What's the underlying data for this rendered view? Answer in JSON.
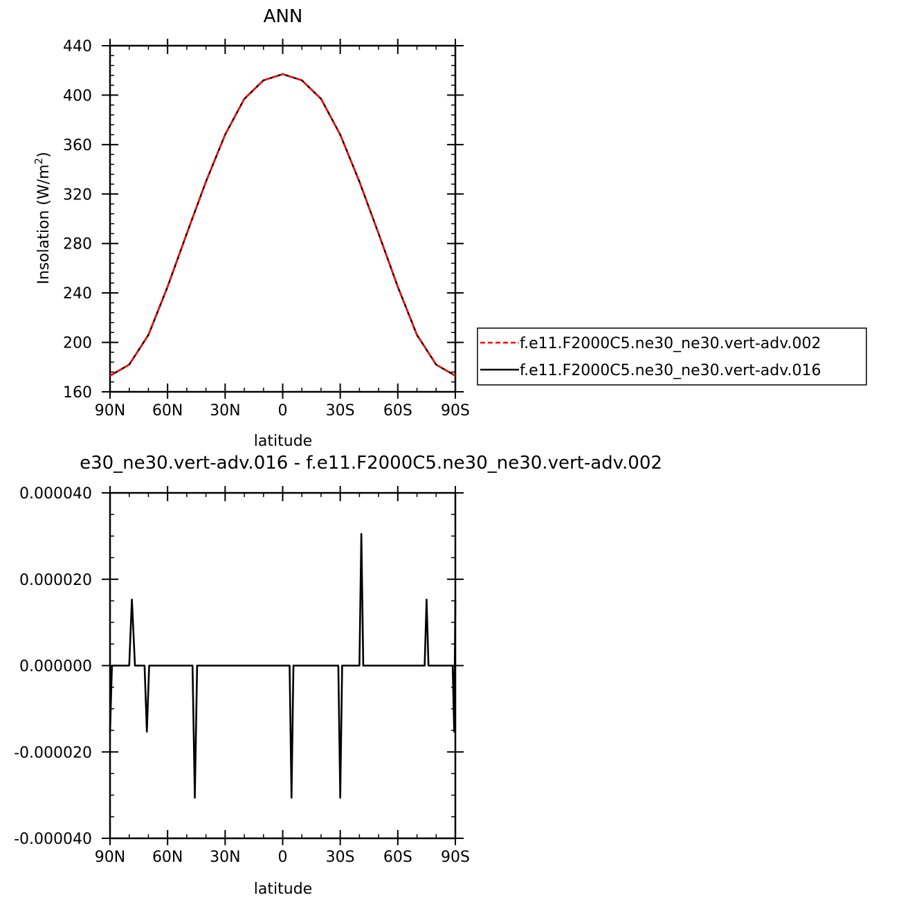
{
  "chart_data": [
    {
      "type": "line",
      "title": "ANN",
      "xlabel": "latitude",
      "ylabel": "Insolation (W/m",
      "ylabel_sup": "2",
      "ylabel_close": ")",
      "xlim": [
        -90,
        90
      ],
      "ylim": [
        160,
        440
      ],
      "x_ticks": [
        {
          "value": -90,
          "label": "90N"
        },
        {
          "value": -60,
          "label": "60N"
        },
        {
          "value": -30,
          "label": "30N"
        },
        {
          "value": 0,
          "label": "0"
        },
        {
          "value": 30,
          "label": "30S"
        },
        {
          "value": 60,
          "label": "60S"
        },
        {
          "value": 90,
          "label": "90S"
        }
      ],
      "y_ticks": [
        {
          "value": 160,
          "label": "160"
        },
        {
          "value": 200,
          "label": "200"
        },
        {
          "value": 240,
          "label": "240"
        },
        {
          "value": 280,
          "label": "280"
        },
        {
          "value": 320,
          "label": "320"
        },
        {
          "value": 360,
          "label": "360"
        },
        {
          "value": 400,
          "label": "400"
        },
        {
          "value": 440,
          "label": "440"
        }
      ],
      "legend_position": "right",
      "series": [
        {
          "name": "f.e11.F2000C5.ne30_ne30.vert-adv.002",
          "color": "#ff0000",
          "dash": "dashed",
          "x": [
            -90,
            -80,
            -70,
            -60,
            -50,
            -40,
            -30,
            -20,
            -10,
            0,
            10,
            20,
            30,
            40,
            50,
            60,
            70,
            80,
            90
          ],
          "y": [
            173,
            182,
            206,
            245,
            288,
            330,
            368,
            397,
            412,
            417,
            412,
            397,
            368,
            330,
            288,
            245,
            206,
            182,
            173
          ]
        },
        {
          "name": "f.e11.F2000C5.ne30_ne30.vert-adv.016",
          "color": "#000000",
          "dash": "solid",
          "x": [
            -90,
            -80,
            -70,
            -60,
            -50,
            -40,
            -30,
            -20,
            -10,
            0,
            10,
            20,
            30,
            40,
            50,
            60,
            70,
            80,
            90
          ],
          "y": [
            173,
            182,
            206,
            245,
            288,
            330,
            368,
            397,
            412,
            417,
            412,
            397,
            368,
            330,
            288,
            245,
            206,
            182,
            173
          ]
        }
      ]
    },
    {
      "type": "line",
      "title": "e30_ne30.vert-adv.016 - f.e11.F2000C5.ne30_ne30.vert-adv.002",
      "xlabel": "latitude",
      "xlim": [
        -90,
        90
      ],
      "ylim": [
        -4e-05,
        4e-05
      ],
      "x_ticks": [
        {
          "value": -90,
          "label": "90N"
        },
        {
          "value": -60,
          "label": "60N"
        },
        {
          "value": -30,
          "label": "30N"
        },
        {
          "value": 0,
          "label": "0"
        },
        {
          "value": 30,
          "label": "30S"
        },
        {
          "value": 60,
          "label": "60S"
        },
        {
          "value": 90,
          "label": "90S"
        }
      ],
      "y_ticks": [
        {
          "value": 4e-05,
          "label": "0.000040"
        },
        {
          "value": 2e-05,
          "label": "0.000020"
        },
        {
          "value": 0,
          "label": "0.000000"
        },
        {
          "value": -2e-05,
          "label": "-0.000020"
        },
        {
          "value": -4e-05,
          "label": "-0.000040"
        }
      ],
      "series": [
        {
          "color": "#000000",
          "x": [
            -90,
            -89,
            -88.6,
            -80,
            -78.6,
            -77,
            -72,
            -70.8,
            -69.6,
            -47,
            -45.8,
            -44.6,
            3.6,
            4.6,
            5.6,
            29,
            30,
            31,
            40,
            41,
            42,
            74,
            75,
            76,
            88.6,
            89.4,
            90
          ],
          "y": [
            -1.55e-05,
            0,
            0,
            0,
            1.53e-05,
            0,
            0,
            -1.53e-05,
            0,
            0,
            -3.06e-05,
            0,
            0,
            -3.06e-05,
            0,
            0,
            -3.06e-05,
            0,
            0,
            3.05e-05,
            0,
            0,
            1.53e-05,
            0,
            0,
            -1.53e-05,
            1.53e-05
          ]
        }
      ]
    }
  ]
}
